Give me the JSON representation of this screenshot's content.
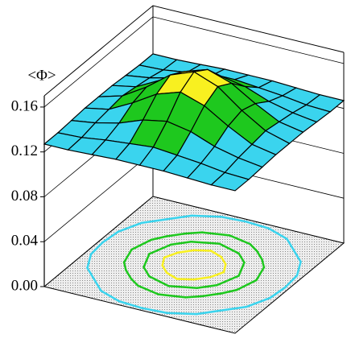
{
  "chart_data": {
    "type": "surface",
    "zlabel": "<Φ>",
    "x": [
      0,
      0.125,
      0.25,
      0.375,
      0.5,
      0.625,
      0.75,
      0.875,
      1
    ],
    "y": [
      0,
      0.125,
      0.25,
      0.375,
      0.5,
      0.625,
      0.75,
      0.875,
      1
    ],
    "xlim": [
      0,
      1
    ],
    "ylim": [
      0,
      1
    ],
    "z": [
      [
        0.127,
        0.127,
        0.128,
        0.129,
        0.129,
        0.129,
        0.128,
        0.127,
        0.127
      ],
      [
        0.127,
        0.128,
        0.131,
        0.133,
        0.135,
        0.133,
        0.131,
        0.128,
        0.127
      ],
      [
        0.128,
        0.131,
        0.136,
        0.144,
        0.148,
        0.144,
        0.136,
        0.131,
        0.128
      ],
      [
        0.129,
        0.133,
        0.144,
        0.157,
        0.164,
        0.157,
        0.144,
        0.133,
        0.129
      ],
      [
        0.129,
        0.135,
        0.148,
        0.164,
        0.172,
        0.164,
        0.148,
        0.135,
        0.129
      ],
      [
        0.129,
        0.133,
        0.144,
        0.157,
        0.164,
        0.157,
        0.144,
        0.133,
        0.129
      ],
      [
        0.128,
        0.131,
        0.136,
        0.144,
        0.148,
        0.144,
        0.136,
        0.131,
        0.128
      ],
      [
        0.127,
        0.128,
        0.131,
        0.133,
        0.135,
        0.133,
        0.131,
        0.128,
        0.127
      ],
      [
        0.127,
        0.127,
        0.128,
        0.129,
        0.129,
        0.129,
        0.128,
        0.127,
        0.127
      ]
    ],
    "zlim": [
      0,
      0.17
    ],
    "zticks": [
      {
        "value": 0,
        "label": "0.00"
      },
      {
        "value": 0.04,
        "label": "0.04"
      },
      {
        "value": 0.08,
        "label": "0.08"
      },
      {
        "value": 0.12,
        "label": "0.12"
      },
      {
        "value": 0.16,
        "label": "0.16"
      }
    ],
    "color_band_edges": [
      0.14,
      0.155,
      0.165
    ],
    "color_band_colors": [
      "#3ad4ee",
      "#1ec81e",
      "#f8f020",
      "#d41010"
    ],
    "contour_levels": [
      0.13,
      0.14,
      0.15,
      0.16
    ],
    "contour_colors": [
      "#3ad4ee",
      "#1ec81e",
      "#1ec81e",
      "#f8f020"
    ],
    "grid": true
  }
}
